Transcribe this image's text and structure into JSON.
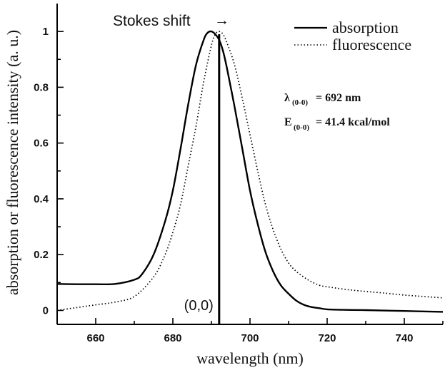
{
  "chart_data": {
    "type": "line",
    "xlabel": "wavelength (nm)",
    "ylabel": "absorption or fluorescence intensity (a. u.)",
    "xlim": [
      650,
      750
    ],
    "ylim": [
      -0.05,
      1.1
    ],
    "xticks": [
      660,
      680,
      700,
      720,
      740
    ],
    "yticks": [
      0,
      0.2,
      0.4,
      0.6,
      0.8,
      1
    ],
    "ytick_labels": [
      "0",
      "0.2",
      "0.4",
      "0.6",
      "0.8",
      "1"
    ],
    "grid": false,
    "legend_position": "top-right",
    "series": [
      {
        "name": "absorption",
        "style": "solid",
        "x": [
          650,
          655,
          660,
          665,
          670,
          672,
          675,
          678,
          680,
          682,
          684,
          686,
          688,
          689,
          690,
          691,
          692,
          693,
          694,
          696,
          698,
          700,
          702,
          704,
          706,
          708,
          710,
          712,
          714,
          716,
          718,
          720,
          725,
          730,
          740,
          750
        ],
        "y": [
          0.095,
          0.094,
          0.094,
          0.095,
          0.11,
          0.13,
          0.2,
          0.32,
          0.43,
          0.58,
          0.74,
          0.88,
          0.97,
          0.995,
          1.0,
          0.99,
          0.97,
          0.93,
          0.87,
          0.73,
          0.58,
          0.43,
          0.31,
          0.21,
          0.14,
          0.09,
          0.06,
          0.035,
          0.02,
          0.012,
          0.008,
          0.004,
          0.002,
          0.001,
          -0.002,
          -0.005
        ]
      },
      {
        "name": "fluorescence",
        "style": "dotted",
        "x": [
          650,
          655,
          660,
          665,
          670,
          675,
          678,
          680,
          682,
          684,
          686,
          688,
          690,
          691,
          692,
          693,
          694,
          696,
          698,
          700,
          702,
          704,
          706,
          708,
          710,
          712,
          715,
          718,
          720,
          725,
          730,
          735,
          740,
          745,
          750
        ],
        "y": [
          0.0,
          0.01,
          0.02,
          0.03,
          0.05,
          0.12,
          0.2,
          0.28,
          0.38,
          0.52,
          0.66,
          0.82,
          0.95,
          0.99,
          1.0,
          0.99,
          0.96,
          0.88,
          0.76,
          0.63,
          0.5,
          0.38,
          0.29,
          0.22,
          0.17,
          0.14,
          0.11,
          0.09,
          0.085,
          0.075,
          0.068,
          0.062,
          0.055,
          0.05,
          0.045
        ]
      }
    ],
    "vertical_line": {
      "x": 692,
      "label": "(0,0)"
    },
    "annotations": {
      "stokes_label": "Stokes shift",
      "stokes_arrow": "→",
      "lambda_symbol": "λ",
      "lambda_sub": "(0-0)",
      "lambda_value": "= 692 nm",
      "energy_symbol": "E",
      "energy_sub": "(0-0)",
      "energy_value": "= 41.4 kcal/mol"
    }
  }
}
